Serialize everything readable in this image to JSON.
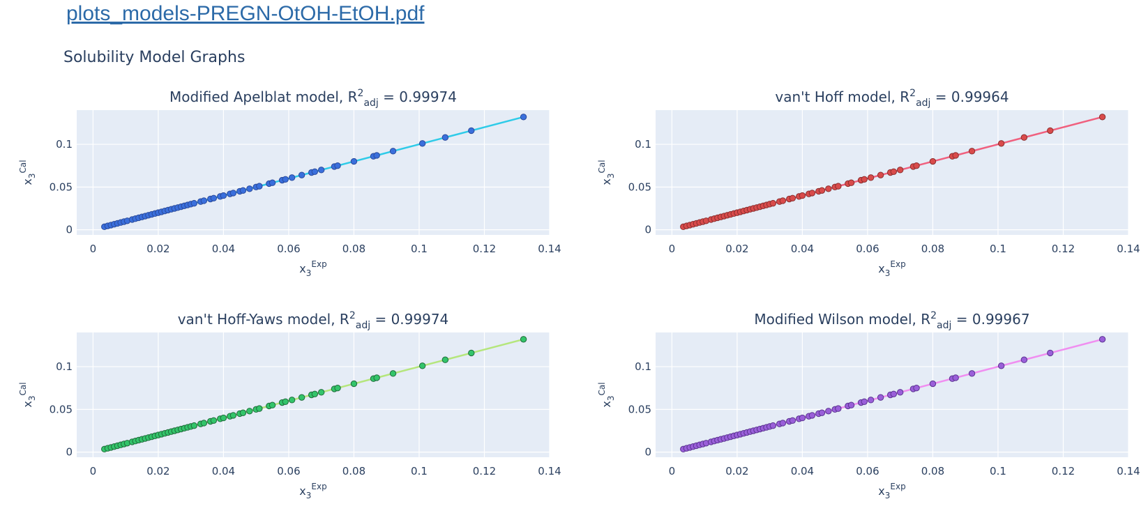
{
  "header": {
    "file_link": "plots_models-PREGN-OtOH-EtOH.pdf",
    "section_title": "Solubility Model Graphs"
  },
  "chart_data": [
    {
      "type": "scatter",
      "title_main": "Modified Apelblat model, R",
      "title_sup": "2",
      "title_sub": "adj",
      "title_value": " = 0.99974",
      "xlabel_main": "x",
      "xlabel_sub": "3",
      "xlabel_sup": "Exp",
      "ylabel_main": "x",
      "ylabel_sub": "3",
      "ylabel_sup": "Cal",
      "xlim": [
        -0.005,
        0.14
      ],
      "ylim": [
        -0.006,
        0.14
      ],
      "x_ticks": [
        0,
        0.02,
        0.04,
        0.06,
        0.08,
        0.1,
        0.12,
        0.14
      ],
      "x_tick_labels": [
        "0",
        "0.02",
        "0.04",
        "0.06",
        "0.08",
        "0.1",
        "0.12",
        "0.14"
      ],
      "y_ticks": [
        0,
        0.05,
        0.1
      ],
      "y_tick_labels": [
        "0",
        "0.05",
        "0.1"
      ],
      "grid": true,
      "line_color": "#2ecbe8",
      "marker_color": "#3a6fdc",
      "marker_edge": "#2a4a9a",
      "series": [
        {
          "x": [
            0.0035,
            0.0045,
            0.0055,
            0.0065,
            0.0075,
            0.0085,
            0.0095,
            0.0105,
            0.012,
            0.013,
            0.014,
            0.015,
            0.016,
            0.017,
            0.018,
            0.019,
            0.02,
            0.021,
            0.022,
            0.023,
            0.024,
            0.025,
            0.026,
            0.027,
            0.028,
            0.029,
            0.03,
            0.031,
            0.033,
            0.034,
            0.036,
            0.037,
            0.039,
            0.04,
            0.042,
            0.043,
            0.045,
            0.046,
            0.048,
            0.05,
            0.051,
            0.054,
            0.055,
            0.058,
            0.059,
            0.061,
            0.064,
            0.067,
            0.068,
            0.07,
            0.074,
            0.075,
            0.08,
            0.086,
            0.087,
            0.092,
            0.101,
            0.108,
            0.116,
            0.132
          ],
          "y": [
            0.0035,
            0.0045,
            0.0055,
            0.0065,
            0.0075,
            0.0085,
            0.0095,
            0.0105,
            0.012,
            0.013,
            0.014,
            0.015,
            0.016,
            0.017,
            0.018,
            0.019,
            0.02,
            0.021,
            0.022,
            0.023,
            0.024,
            0.025,
            0.026,
            0.027,
            0.028,
            0.029,
            0.03,
            0.031,
            0.033,
            0.034,
            0.036,
            0.037,
            0.039,
            0.04,
            0.042,
            0.043,
            0.045,
            0.046,
            0.048,
            0.05,
            0.051,
            0.054,
            0.055,
            0.058,
            0.059,
            0.061,
            0.064,
            0.067,
            0.068,
            0.07,
            0.074,
            0.075,
            0.08,
            0.086,
            0.087,
            0.092,
            0.101,
            0.108,
            0.116,
            0.132
          ]
        }
      ]
    },
    {
      "type": "scatter",
      "title_main": "van't Hoff model, R",
      "title_sup": "2",
      "title_sub": "adj",
      "title_value": " = 0.99964",
      "xlabel_main": "x",
      "xlabel_sub": "3",
      "xlabel_sup": "Exp",
      "ylabel_main": "x",
      "ylabel_sub": "3",
      "ylabel_sup": "Cal",
      "xlim": [
        -0.005,
        0.14
      ],
      "ylim": [
        -0.006,
        0.14
      ],
      "x_ticks": [
        0,
        0.02,
        0.04,
        0.06,
        0.08,
        0.1,
        0.12,
        0.14
      ],
      "x_tick_labels": [
        "0",
        "0.02",
        "0.04",
        "0.06",
        "0.08",
        "0.1",
        "0.12",
        "0.14"
      ],
      "y_ticks": [
        0,
        0.05,
        0.1
      ],
      "y_tick_labels": [
        "0",
        "0.05",
        "0.1"
      ],
      "grid": true,
      "line_color": "#f0607e",
      "marker_color": "#d94b4b",
      "marker_edge": "#8a2e2e",
      "series": [
        {
          "x": [
            0.0035,
            0.0045,
            0.0055,
            0.0065,
            0.0075,
            0.0085,
            0.0095,
            0.0105,
            0.012,
            0.013,
            0.014,
            0.015,
            0.016,
            0.017,
            0.018,
            0.019,
            0.02,
            0.021,
            0.022,
            0.023,
            0.024,
            0.025,
            0.026,
            0.027,
            0.028,
            0.029,
            0.03,
            0.031,
            0.033,
            0.034,
            0.036,
            0.037,
            0.039,
            0.04,
            0.042,
            0.043,
            0.045,
            0.046,
            0.048,
            0.05,
            0.051,
            0.054,
            0.055,
            0.058,
            0.059,
            0.061,
            0.064,
            0.067,
            0.068,
            0.07,
            0.074,
            0.075,
            0.08,
            0.086,
            0.087,
            0.092,
            0.101,
            0.108,
            0.116,
            0.132
          ],
          "y": [
            0.0035,
            0.0045,
            0.0055,
            0.0065,
            0.0075,
            0.0085,
            0.0095,
            0.0105,
            0.012,
            0.013,
            0.014,
            0.015,
            0.016,
            0.017,
            0.018,
            0.019,
            0.02,
            0.021,
            0.022,
            0.023,
            0.024,
            0.025,
            0.026,
            0.027,
            0.028,
            0.029,
            0.03,
            0.031,
            0.033,
            0.034,
            0.036,
            0.037,
            0.039,
            0.04,
            0.042,
            0.043,
            0.045,
            0.046,
            0.048,
            0.05,
            0.051,
            0.054,
            0.055,
            0.058,
            0.059,
            0.061,
            0.064,
            0.067,
            0.068,
            0.07,
            0.074,
            0.075,
            0.08,
            0.086,
            0.087,
            0.092,
            0.101,
            0.108,
            0.116,
            0.132
          ]
        }
      ]
    },
    {
      "type": "scatter",
      "title_main": "van't Hoff-Yaws model, R",
      "title_sup": "2",
      "title_sub": "adj",
      "title_value": " = 0.99974",
      "xlabel_main": "x",
      "xlabel_sub": "3",
      "xlabel_sup": "Exp",
      "ylabel_main": "x",
      "ylabel_sub": "3",
      "ylabel_sup": "Cal",
      "xlim": [
        -0.005,
        0.14
      ],
      "ylim": [
        -0.006,
        0.14
      ],
      "x_ticks": [
        0,
        0.02,
        0.04,
        0.06,
        0.08,
        0.1,
        0.12,
        0.14
      ],
      "x_tick_labels": [
        "0",
        "0.02",
        "0.04",
        "0.06",
        "0.08",
        "0.1",
        "0.12",
        "0.14"
      ],
      "y_ticks": [
        0,
        0.05,
        0.1
      ],
      "y_tick_labels": [
        "0",
        "0.05",
        "0.1"
      ],
      "grid": true,
      "line_color": "#b5e67c",
      "marker_color": "#33c46a",
      "marker_edge": "#1f6b3a",
      "series": [
        {
          "x": [
            0.0035,
            0.0045,
            0.0055,
            0.0065,
            0.0075,
            0.0085,
            0.0095,
            0.0105,
            0.012,
            0.013,
            0.014,
            0.015,
            0.016,
            0.017,
            0.018,
            0.019,
            0.02,
            0.021,
            0.022,
            0.023,
            0.024,
            0.025,
            0.026,
            0.027,
            0.028,
            0.029,
            0.03,
            0.031,
            0.033,
            0.034,
            0.036,
            0.037,
            0.039,
            0.04,
            0.042,
            0.043,
            0.045,
            0.046,
            0.048,
            0.05,
            0.051,
            0.054,
            0.055,
            0.058,
            0.059,
            0.061,
            0.064,
            0.067,
            0.068,
            0.07,
            0.074,
            0.075,
            0.08,
            0.086,
            0.087,
            0.092,
            0.101,
            0.108,
            0.116,
            0.132
          ],
          "y": [
            0.0035,
            0.0045,
            0.0055,
            0.0065,
            0.0075,
            0.0085,
            0.0095,
            0.0105,
            0.012,
            0.013,
            0.014,
            0.015,
            0.016,
            0.017,
            0.018,
            0.019,
            0.02,
            0.021,
            0.022,
            0.023,
            0.024,
            0.025,
            0.026,
            0.027,
            0.028,
            0.029,
            0.03,
            0.031,
            0.033,
            0.034,
            0.036,
            0.037,
            0.039,
            0.04,
            0.042,
            0.043,
            0.045,
            0.046,
            0.048,
            0.05,
            0.051,
            0.054,
            0.055,
            0.058,
            0.059,
            0.061,
            0.064,
            0.067,
            0.068,
            0.07,
            0.074,
            0.075,
            0.08,
            0.086,
            0.087,
            0.092,
            0.101,
            0.108,
            0.116,
            0.132
          ]
        }
      ]
    },
    {
      "type": "scatter",
      "title_main": "Modified Wilson model, R",
      "title_sup": "2",
      "title_sub": "adj",
      "title_value": " = 0.99967",
      "xlabel_main": "x",
      "xlabel_sub": "3",
      "xlabel_sup": "Exp",
      "ylabel_main": "x",
      "ylabel_sub": "3",
      "ylabel_sup": "Cal",
      "xlim": [
        -0.005,
        0.14
      ],
      "ylim": [
        -0.006,
        0.14
      ],
      "x_ticks": [
        0,
        0.02,
        0.04,
        0.06,
        0.08,
        0.1,
        0.12,
        0.14
      ],
      "x_tick_labels": [
        "0",
        "0.02",
        "0.04",
        "0.06",
        "0.08",
        "0.1",
        "0.12",
        "0.14"
      ],
      "y_ticks": [
        0,
        0.05,
        0.1
      ],
      "y_tick_labels": [
        "0",
        "0.05",
        "0.1"
      ],
      "grid": true,
      "line_color": "#f08ef0",
      "marker_color": "#9a5fd9",
      "marker_edge": "#5a3390",
      "series": [
        {
          "x": [
            0.0035,
            0.0045,
            0.0055,
            0.0065,
            0.0075,
            0.0085,
            0.0095,
            0.0105,
            0.012,
            0.013,
            0.014,
            0.015,
            0.016,
            0.017,
            0.018,
            0.019,
            0.02,
            0.021,
            0.022,
            0.023,
            0.024,
            0.025,
            0.026,
            0.027,
            0.028,
            0.029,
            0.03,
            0.031,
            0.033,
            0.034,
            0.036,
            0.037,
            0.039,
            0.04,
            0.042,
            0.043,
            0.045,
            0.046,
            0.048,
            0.05,
            0.051,
            0.054,
            0.055,
            0.058,
            0.059,
            0.061,
            0.064,
            0.067,
            0.068,
            0.07,
            0.074,
            0.075,
            0.08,
            0.086,
            0.087,
            0.092,
            0.101,
            0.108,
            0.116,
            0.132
          ],
          "y": [
            0.0035,
            0.0045,
            0.0055,
            0.0065,
            0.0075,
            0.0085,
            0.0095,
            0.0105,
            0.012,
            0.013,
            0.014,
            0.015,
            0.016,
            0.017,
            0.018,
            0.019,
            0.02,
            0.021,
            0.022,
            0.023,
            0.024,
            0.025,
            0.026,
            0.027,
            0.028,
            0.029,
            0.03,
            0.031,
            0.033,
            0.034,
            0.036,
            0.037,
            0.039,
            0.04,
            0.042,
            0.043,
            0.045,
            0.046,
            0.048,
            0.05,
            0.051,
            0.054,
            0.055,
            0.058,
            0.059,
            0.061,
            0.064,
            0.067,
            0.068,
            0.07,
            0.074,
            0.075,
            0.08,
            0.086,
            0.087,
            0.092,
            0.101,
            0.108,
            0.116,
            0.132
          ]
        }
      ]
    }
  ]
}
